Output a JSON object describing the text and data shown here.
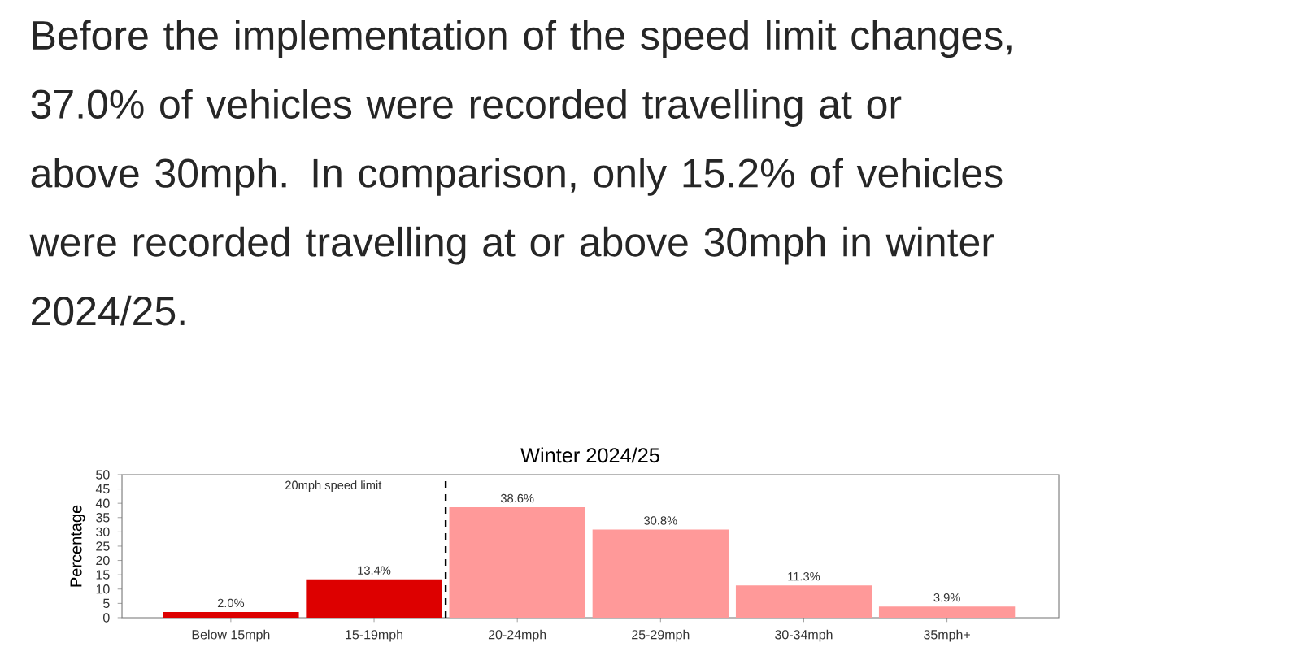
{
  "chart_data": {
    "type": "bar",
    "title": "Winter 2024/25",
    "ylabel": "Percentage",
    "annotations": [
      "Before the implementation of the speed limit changes, 37.0% of vehicles were recorded travelling at or above 30mph. In comparison, only 15.2% of vehicles were recorded travelling at or above 30mph in winter 2024/25.",
      "20mph speed limit"
    ],
    "categories": [
      "Below 15mph",
      "15-19mph",
      "20-24mph",
      "25-29mph",
      "30-34mph",
      "35mph+"
    ],
    "values": [
      2.0,
      13.4,
      38.6,
      30.8,
      11.3,
      3.9
    ],
    "value_labels": [
      "2.0%",
      "13.4%",
      "38.6%",
      "30.8%",
      "11.3%",
      "3.9%"
    ],
    "colors": [
      "#dd0000",
      "#dd0000",
      "#ff9999",
      "#ff9999",
      "#ff9999",
      "#ff9999"
    ],
    "ylim": [
      0,
      50
    ],
    "yticks": [
      0,
      5,
      10,
      15,
      20,
      25,
      30,
      35,
      40,
      45,
      50
    ]
  }
}
